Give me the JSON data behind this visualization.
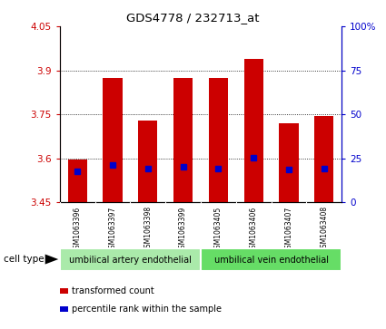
{
  "title": "GDS4778 / 232713_at",
  "samples": [
    "GSM1063396",
    "GSM1063397",
    "GSM1063398",
    "GSM1063399",
    "GSM1063405",
    "GSM1063406",
    "GSM1063407",
    "GSM1063408"
  ],
  "bar_bottom": 3.45,
  "bar_tops": [
    3.595,
    3.875,
    3.73,
    3.875,
    3.875,
    3.94,
    3.72,
    3.745
  ],
  "percentile_values": [
    3.555,
    3.578,
    3.564,
    3.571,
    3.565,
    3.603,
    3.563,
    3.566
  ],
  "bar_color": "#cc0000",
  "percentile_color": "#0000cc",
  "ylim_left": [
    3.45,
    4.05
  ],
  "ylim_right": [
    0,
    100
  ],
  "yticks_left": [
    3.45,
    3.6,
    3.75,
    3.9,
    4.05
  ],
  "yticks_right": [
    0,
    25,
    50,
    75,
    100
  ],
  "ytick_labels_left": [
    "3.45",
    "3.6",
    "3.75",
    "3.9",
    "4.05"
  ],
  "ytick_labels_right": [
    "0",
    "25",
    "50",
    "75",
    "100%"
  ],
  "grid_yticks": [
    3.6,
    3.75,
    3.9
  ],
  "groups": [
    {
      "label": "umbilical artery endothelial",
      "n": 4,
      "color": "#aaeaaa"
    },
    {
      "label": "umbilical vein endothelial",
      "n": 4,
      "color": "#66dd66"
    }
  ],
  "cell_type_label": "cell type",
  "legend_items": [
    {
      "color": "#cc0000",
      "marker": "s",
      "label": "transformed count"
    },
    {
      "color": "#0000cc",
      "marker": "s",
      "label": "percentile rank within the sample"
    }
  ],
  "bar_width": 0.55,
  "tick_color_left": "#cc0000",
  "tick_color_right": "#0000cc",
  "xlabel_area_color": "#c8c8c8",
  "cell_type_border_color": "#ffffff"
}
